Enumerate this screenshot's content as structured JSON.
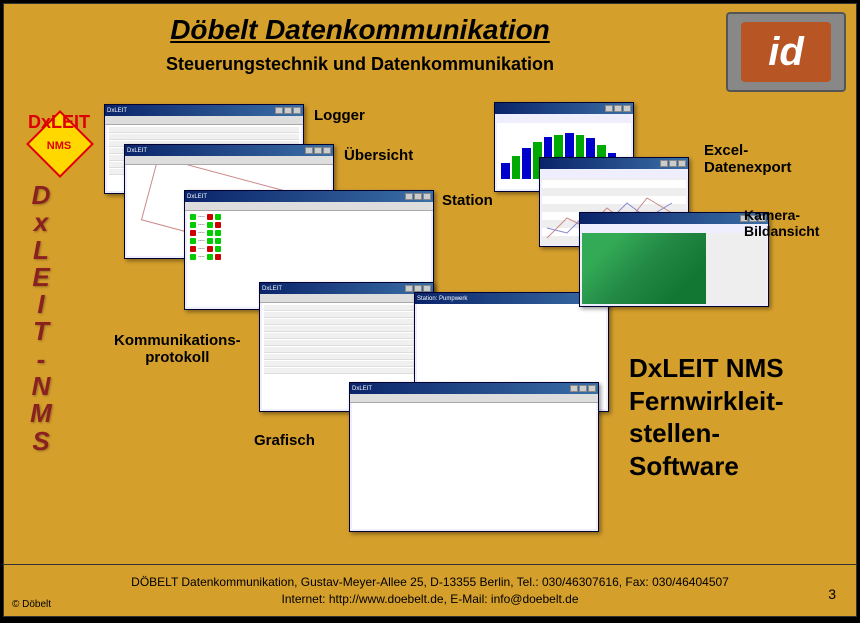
{
  "header": {
    "title": "Döbelt Datenkommunikation",
    "subtitle": "Steuerungstechnik und Datenkommunikation",
    "logo_text": "id"
  },
  "sidebar": {
    "logo_top": "DxLEIT",
    "logo_bottom": "NMS",
    "vertical": [
      "D",
      "x",
      "L",
      "E",
      "I",
      "T",
      "-",
      "N",
      "M",
      "S"
    ]
  },
  "windows": [
    {
      "id": "logger",
      "title": "DxLEIT",
      "label": "Logger",
      "type": "table"
    },
    {
      "id": "uebersicht",
      "title": "DxLEIT",
      "label": "Übersicht",
      "type": "map"
    },
    {
      "id": "station",
      "title": "DxLEIT",
      "label": "Station",
      "type": "leds"
    },
    {
      "id": "protokoll",
      "title": "DxLEIT",
      "label": "Kommunikations-\nprotokoll",
      "type": "table"
    },
    {
      "id": "grafisch",
      "title": "DxLEIT",
      "label": "Grafisch",
      "type": "house"
    },
    {
      "id": "excel",
      "title": "",
      "label": "Excel-\nDatenexport",
      "type": "chart"
    },
    {
      "id": "kamera",
      "title": "",
      "label": "Kamera-\nBildansicht",
      "type": "photo"
    },
    {
      "id": "pumpwerk",
      "title": "Station: Pumpwerk",
      "label": "",
      "type": "photo_big"
    }
  ],
  "chart": {
    "bars": [
      30,
      45,
      60,
      72,
      80,
      85,
      88,
      85,
      78,
      65,
      50,
      35
    ],
    "bar_colors": [
      "#0000cc",
      "#00aa00",
      "#0000cc",
      "#00aa00",
      "#0000cc",
      "#00aa00",
      "#0000cc",
      "#00aa00",
      "#0000cc",
      "#00aa00",
      "#0000cc",
      "#00aa00"
    ]
  },
  "main_label": "DxLEIT NMS\nFernwirkleit-\nstellen-\nSoftware",
  "footer": {
    "copyright": "© Döbelt",
    "line1": "DÖBELT Datenkommunikation, Gustav-Meyer-Allee 25, D-13355 Berlin, Tel.: 030/46307616, Fax: 030/46404507",
    "line2": "Internet: http://www.doebelt.de, E-Mail: info@doebelt.de",
    "page": "3"
  },
  "colors": {
    "slide_bg": "#d59f2c",
    "titlebar": "#0a246a",
    "accent_red": "#d00000"
  }
}
